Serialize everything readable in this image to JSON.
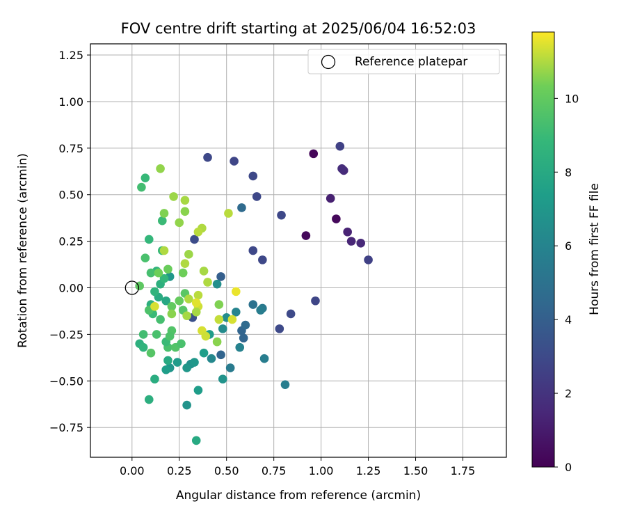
{
  "chart_data": {
    "type": "scatter",
    "title": "FOV centre drift starting at 2025/06/04 16:52:03",
    "xlabel": "Angular distance from reference (arcmin)",
    "ylabel": "Rotation from reference (arcmin)",
    "xlim": [
      -0.22,
      1.98
    ],
    "ylim": [
      -0.91,
      1.31
    ],
    "xticks": [
      "0.00",
      "0.25",
      "0.50",
      "0.75",
      "1.00",
      "1.25",
      "1.50",
      "1.75"
    ],
    "xtick_values": [
      0,
      0.25,
      0.5,
      0.75,
      1.0,
      1.25,
      1.5,
      1.75
    ],
    "yticks": [
      "−0.75",
      "−0.50",
      "−0.25",
      "0.00",
      "0.25",
      "0.50",
      "0.75",
      "1.00",
      "1.25"
    ],
    "ytick_values": [
      -0.75,
      -0.5,
      -0.25,
      0,
      0.25,
      0.5,
      0.75,
      1.0,
      1.25
    ],
    "grid": true,
    "legend": {
      "placement": "upper right",
      "entries": [
        "Reference platepar"
      ]
    },
    "reference_point": {
      "x": 0,
      "y": 0,
      "label": "Reference platepar"
    },
    "colorbar": {
      "label": "Hours from first FF file",
      "colormap": "viridis",
      "min": 0,
      "max": 11.8,
      "ticks": [
        "0",
        "2",
        "4",
        "6",
        "8",
        "10"
      ],
      "tick_values": [
        0,
        2,
        4,
        6,
        8,
        10
      ]
    },
    "points": [
      {
        "x": 0.96,
        "y": 0.72,
        "h": 0.2
      },
      {
        "x": 1.08,
        "y": 0.37,
        "h": 0.3
      },
      {
        "x": 0.92,
        "y": 0.28,
        "h": 0.3
      },
      {
        "x": 1.05,
        "y": 0.48,
        "h": 1.2
      },
      {
        "x": 1.14,
        "y": 0.3,
        "h": 1.3
      },
      {
        "x": 1.16,
        "y": 0.25,
        "h": 1.4
      },
      {
        "x": 1.21,
        "y": 0.24,
        "h": 1.5
      },
      {
        "x": 1.12,
        "y": 0.63,
        "h": 1.6
      },
      {
        "x": 1.11,
        "y": 0.64,
        "h": 1.7
      },
      {
        "x": 1.1,
        "y": 0.76,
        "h": 2.6
      },
      {
        "x": 1.25,
        "y": 0.15,
        "h": 2.6
      },
      {
        "x": 0.97,
        "y": -0.07,
        "h": 2.8
      },
      {
        "x": 0.4,
        "y": 0.7,
        "h": 2.9
      },
      {
        "x": 0.54,
        "y": 0.68,
        "h": 2.8
      },
      {
        "x": 0.64,
        "y": 0.6,
        "h": 2.9
      },
      {
        "x": 0.66,
        "y": 0.49,
        "h": 2.9
      },
      {
        "x": 0.79,
        "y": 0.39,
        "h": 2.9
      },
      {
        "x": 0.64,
        "y": 0.2,
        "h": 2.9
      },
      {
        "x": 0.69,
        "y": 0.15,
        "h": 2.9
      },
      {
        "x": 0.84,
        "y": -0.14,
        "h": 3.0
      },
      {
        "x": 0.78,
        "y": -0.22,
        "h": 3.0
      },
      {
        "x": 0.33,
        "y": 0.26,
        "h": 3.1
      },
      {
        "x": 0.32,
        "y": -0.16,
        "h": 3.3
      },
      {
        "x": 0.47,
        "y": 0.06,
        "h": 4.0
      },
      {
        "x": 0.58,
        "y": 0.43,
        "h": 4.6
      },
      {
        "x": 0.47,
        "y": -0.36,
        "h": 4.3
      },
      {
        "x": 0.59,
        "y": -0.27,
        "h": 4.3
      },
      {
        "x": 0.58,
        "y": -0.23,
        "h": 4.3
      },
      {
        "x": 0.6,
        "y": -0.2,
        "h": 4.6
      },
      {
        "x": 0.64,
        "y": -0.09,
        "h": 5.0
      },
      {
        "x": 0.69,
        "y": -0.11,
        "h": 5.4
      },
      {
        "x": 0.68,
        "y": -0.12,
        "h": 5.6
      },
      {
        "x": 0.7,
        "y": -0.38,
        "h": 5.6
      },
      {
        "x": 0.81,
        "y": -0.52,
        "h": 5.6
      },
      {
        "x": 0.52,
        "y": -0.43,
        "h": 5.5
      },
      {
        "x": 0.57,
        "y": -0.32,
        "h": 5.9
      },
      {
        "x": 0.55,
        "y": -0.13,
        "h": 6.0
      },
      {
        "x": 0.48,
        "y": -0.22,
        "h": 6.4
      },
      {
        "x": 0.5,
        "y": -0.16,
        "h": 6.5
      },
      {
        "x": 0.42,
        "y": -0.38,
        "h": 6.2
      },
      {
        "x": 0.45,
        "y": 0.02,
        "h": 6.6
      },
      {
        "x": 0.48,
        "y": -0.49,
        "h": 6.8
      },
      {
        "x": 0.29,
        "y": -0.63,
        "h": 6.8
      },
      {
        "x": 0.31,
        "y": -0.41,
        "h": 6.6
      },
      {
        "x": 0.33,
        "y": -0.4,
        "h": 7.0
      },
      {
        "x": 0.29,
        "y": -0.43,
        "h": 7.0
      },
      {
        "x": 0.2,
        "y": -0.43,
        "h": 6.9
      },
      {
        "x": 0.24,
        "y": -0.4,
        "h": 7.2
      },
      {
        "x": 0.2,
        "y": 0.06,
        "h": 7.0
      },
      {
        "x": 0.35,
        "y": -0.55,
        "h": 7.3
      },
      {
        "x": 0.38,
        "y": -0.35,
        "h": 7.4
      },
      {
        "x": 0.41,
        "y": -0.25,
        "h": 7.3
      },
      {
        "x": 0.18,
        "y": -0.44,
        "h": 7.4
      },
      {
        "x": 0.34,
        "y": -0.82,
        "h": 8.0
      },
      {
        "x": 0.09,
        "y": -0.6,
        "h": 8.3
      },
      {
        "x": 0.12,
        "y": -0.49,
        "h": 8.2
      },
      {
        "x": 0.19,
        "y": -0.39,
        "h": 8.0
      },
      {
        "x": 0.04,
        "y": -0.3,
        "h": 8.4
      },
      {
        "x": 0.06,
        "y": -0.32,
        "h": 8.6
      },
      {
        "x": 0.18,
        "y": -0.07,
        "h": 7.9
      },
      {
        "x": 0.14,
        "y": -0.05,
        "h": 8.1
      },
      {
        "x": 0.1,
        "y": -0.09,
        "h": 8.4
      },
      {
        "x": 0.12,
        "y": -0.02,
        "h": 8.6
      },
      {
        "x": 0.15,
        "y": 0.02,
        "h": 8.4
      },
      {
        "x": 0.17,
        "y": 0.05,
        "h": 8.8
      },
      {
        "x": 0.13,
        "y": 0.09,
        "h": 8.6
      },
      {
        "x": 0.09,
        "y": 0.26,
        "h": 8.8
      },
      {
        "x": 0.07,
        "y": 0.59,
        "h": 8.9
      },
      {
        "x": 0.05,
        "y": 0.54,
        "h": 9.2
      },
      {
        "x": 0.16,
        "y": 0.36,
        "h": 9.0
      },
      {
        "x": 0.16,
        "y": 0.2,
        "h": 8.9
      },
      {
        "x": 0.07,
        "y": 0.16,
        "h": 9.4
      },
      {
        "x": 0.1,
        "y": 0.08,
        "h": 9.3
      },
      {
        "x": 0.11,
        "y": -0.14,
        "h": 9.0
      },
      {
        "x": 0.15,
        "y": -0.17,
        "h": 9.3
      },
      {
        "x": 0.09,
        "y": -0.12,
        "h": 9.5
      },
      {
        "x": 0.06,
        "y": -0.25,
        "h": 9.2
      },
      {
        "x": 0.13,
        "y": -0.25,
        "h": 9.4
      },
      {
        "x": 0.19,
        "y": -0.32,
        "h": 9.4
      },
      {
        "x": 0.23,
        "y": -0.32,
        "h": 9.6
      },
      {
        "x": 0.26,
        "y": -0.3,
        "h": 9.4
      },
      {
        "x": 0.18,
        "y": -0.29,
        "h": 9.0
      },
      {
        "x": 0.1,
        "y": -0.35,
        "h": 9.7
      },
      {
        "x": 0.21,
        "y": -0.23,
        "h": 9.6
      },
      {
        "x": 0.2,
        "y": -0.26,
        "h": 9.5
      },
      {
        "x": 0.27,
        "y": -0.12,
        "h": 9.7
      },
      {
        "x": 0.28,
        "y": -0.03,
        "h": 9.8
      },
      {
        "x": 0.21,
        "y": -0.1,
        "h": 10.0
      },
      {
        "x": 0.25,
        "y": -0.07,
        "h": 10.1
      },
      {
        "x": 0.19,
        "y": 0.1,
        "h": 10.2
      },
      {
        "x": 0.27,
        "y": 0.08,
        "h": 10.3
      },
      {
        "x": 0.14,
        "y": 0.08,
        "h": 10.3
      },
      {
        "x": 0.04,
        "y": 0.01,
        "h": 9.9
      },
      {
        "x": 0.15,
        "y": 0.64,
        "h": 10.7
      },
      {
        "x": 0.22,
        "y": 0.49,
        "h": 10.8
      },
      {
        "x": 0.28,
        "y": 0.47,
        "h": 10.9
      },
      {
        "x": 0.28,
        "y": 0.41,
        "h": 10.6
      },
      {
        "x": 0.17,
        "y": 0.4,
        "h": 10.5
      },
      {
        "x": 0.25,
        "y": 0.35,
        "h": 10.7
      },
      {
        "x": 0.37,
        "y": 0.32,
        "h": 11.0
      },
      {
        "x": 0.35,
        "y": 0.3,
        "h": 11.1
      },
      {
        "x": 0.3,
        "y": 0.18,
        "h": 10.8
      },
      {
        "x": 0.28,
        "y": 0.13,
        "h": 11.0
      },
      {
        "x": 0.38,
        "y": 0.09,
        "h": 10.9
      },
      {
        "x": 0.4,
        "y": 0.03,
        "h": 11.0
      },
      {
        "x": 0.17,
        "y": 0.2,
        "h": 11.0
      },
      {
        "x": 0.51,
        "y": 0.4,
        "h": 11.1
      },
      {
        "x": 0.29,
        "y": -0.15,
        "h": 10.9
      },
      {
        "x": 0.3,
        "y": -0.06,
        "h": 11.0
      },
      {
        "x": 0.35,
        "y": -0.04,
        "h": 11.1
      },
      {
        "x": 0.12,
        "y": -0.1,
        "h": 11.4
      },
      {
        "x": 0.35,
        "y": -0.1,
        "h": 11.3
      },
      {
        "x": 0.34,
        "y": -0.08,
        "h": 11.5
      },
      {
        "x": 0.37,
        "y": -0.23,
        "h": 11.4
      },
      {
        "x": 0.39,
        "y": -0.26,
        "h": 11.3
      },
      {
        "x": 0.46,
        "y": -0.17,
        "h": 11.2
      },
      {
        "x": 0.53,
        "y": -0.17,
        "h": 11.4
      },
      {
        "x": 0.55,
        "y": -0.02,
        "h": 11.6
      },
      {
        "x": 0.46,
        "y": -0.09,
        "h": 10.5
      },
      {
        "x": 0.45,
        "y": -0.29,
        "h": 10.6
      },
      {
        "x": 0.34,
        "y": -0.13,
        "h": 10.9
      },
      {
        "x": 0.21,
        "y": -0.14,
        "h": 10.6
      }
    ]
  }
}
